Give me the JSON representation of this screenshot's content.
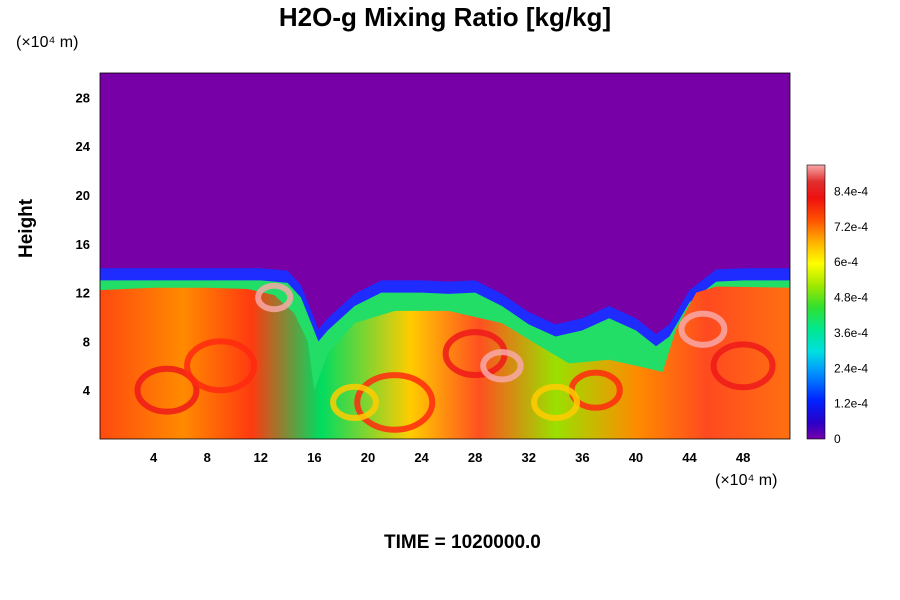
{
  "chart_data": {
    "type": "heatmap",
    "title": "H2O-g Mixing Ratio [kg/kg]",
    "ylabel": "Height",
    "x_unit_label": "(×10⁴ m)",
    "y_unit_label": "(×10⁴ m)",
    "x_ticks": [
      "4",
      "8",
      "12",
      "16",
      "20",
      "24",
      "28",
      "32",
      "36",
      "40",
      "44",
      "48"
    ],
    "x_tick_values": [
      4,
      8,
      12,
      16,
      20,
      24,
      28,
      32,
      36,
      40,
      44,
      48
    ],
    "y_ticks": [
      "4",
      "8",
      "12",
      "16",
      "20",
      "24",
      "28"
    ],
    "y_tick_values": [
      4,
      8,
      12,
      16,
      20,
      24,
      28
    ],
    "xlim": [
      0,
      51.5
    ],
    "ylim": [
      0,
      30
    ],
    "colorbar_labels": [
      "0",
      "1.2e-4",
      "2.4e-4",
      "3.6e-4",
      "4.8e-4",
      "6e-4",
      "7.2e-4",
      "8.4e-4"
    ],
    "colorbar_values": [
      0,
      0.00012,
      0.00024,
      0.00036,
      0.00048,
      0.0006,
      0.00072,
      0.00084
    ],
    "colorbar_range": [
      0,
      0.00093
    ],
    "boundary_height": [
      [
        0,
        13.6
      ],
      [
        4,
        13.6
      ],
      [
        8,
        13.6
      ],
      [
        12,
        13.6
      ],
      [
        14,
        13.4
      ],
      [
        15,
        12.2
      ],
      [
        15.8,
        10.0
      ],
      [
        16.3,
        8.6
      ],
      [
        17,
        9.5
      ],
      [
        19,
        11.5
      ],
      [
        21,
        12.6
      ],
      [
        24,
        12.6
      ],
      [
        26,
        12.5
      ],
      [
        28,
        12.6
      ],
      [
        30,
        11.5
      ],
      [
        32,
        10.0
      ],
      [
        34,
        9.0
      ],
      [
        36,
        9.5
      ],
      [
        38,
        10.5
      ],
      [
        40,
        9.5
      ],
      [
        41.5,
        8.2
      ],
      [
        42.5,
        9.0
      ],
      [
        44,
        11.8
      ],
      [
        46,
        13.5
      ],
      [
        48,
        13.6
      ],
      [
        51.5,
        13.6
      ]
    ],
    "moist_core_height": [
      [
        0,
        12.2
      ],
      [
        4,
        12.4
      ],
      [
        8,
        12.4
      ],
      [
        11,
        12.3
      ],
      [
        13,
        11.8
      ],
      [
        14.5,
        10.3
      ],
      [
        15.5,
        8.0
      ],
      [
        16,
        4.0
      ],
      [
        17,
        7.0
      ],
      [
        19,
        9.5
      ],
      [
        22,
        10.5
      ],
      [
        26,
        10.5
      ],
      [
        30,
        9.5
      ],
      [
        33,
        7.5
      ],
      [
        35,
        6.2
      ],
      [
        38,
        6.5
      ],
      [
        40,
        6.0
      ],
      [
        42,
        5.5
      ],
      [
        43,
        9.0
      ],
      [
        44.5,
        12.0
      ],
      [
        46,
        12.5
      ],
      [
        51.5,
        12.4
      ]
    ],
    "time_label": "TIME = 1020000.0"
  }
}
